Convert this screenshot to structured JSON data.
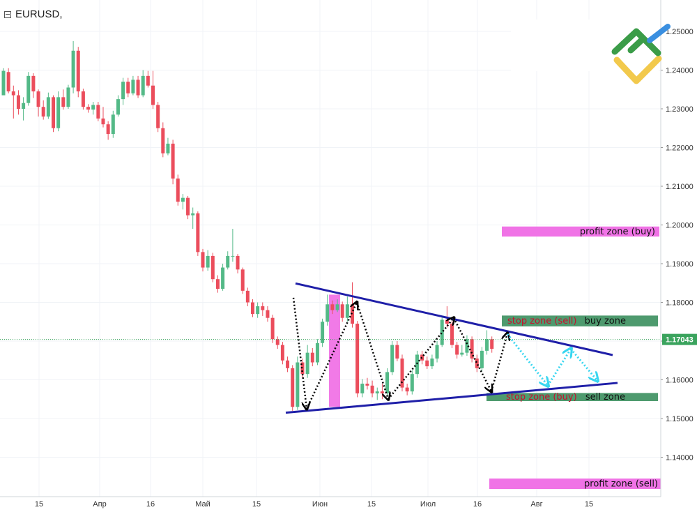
{
  "symbol": "EURUSD,",
  "colors": {
    "up": "#53b987",
    "down": "#eb4d5c",
    "triangle": "#1f1fa8",
    "pink": "#f073e6",
    "green_zone": "#4e9a6e",
    "current_price": "#3aa35d",
    "projection": "#38d6f0",
    "stop_text": "#c8102e"
  },
  "chart_data": {
    "type": "candlestick",
    "x_tick_labels": [
      "15",
      "Апр",
      "16",
      "Май",
      "15",
      "Июн",
      "15",
      "Июл",
      "16",
      "Авг",
      "15"
    ],
    "y_ticks": [
      "1.25000",
      "1.24000",
      "1.23000",
      "1.22000",
      "1.21000",
      "1.20000",
      "1.19000",
      "1.18000",
      "1.17000",
      "1.16000",
      "1.15000",
      "1.14000"
    ],
    "y_range": [
      1.131,
      1.2535
    ],
    "current_price": 1.17043,
    "current_price_label": "1.17043",
    "candles": [
      [
        1.2335,
        1.2398,
        1.2345,
        1.2405
      ],
      [
        1.2395,
        1.2345,
        1.234,
        1.2405
      ],
      [
        1.2345,
        1.2335,
        1.2275,
        1.236
      ],
      [
        1.2335,
        1.23,
        1.2285,
        1.2348
      ],
      [
        1.23,
        1.2315,
        1.227,
        1.233
      ],
      [
        1.2315,
        1.2385,
        1.2308,
        1.2395
      ],
      [
        1.2385,
        1.2345,
        1.2328,
        1.2392
      ],
      [
        1.2345,
        1.2305,
        1.228,
        1.235
      ],
      [
        1.2305,
        1.228,
        1.2272,
        1.2322
      ],
      [
        1.228,
        1.233,
        1.2274,
        1.2342
      ],
      [
        1.233,
        1.225,
        1.224,
        1.2335
      ],
      [
        1.225,
        1.233,
        1.2242,
        1.2345
      ],
      [
        1.233,
        1.2305,
        1.2298,
        1.235
      ],
      [
        1.2305,
        1.2355,
        1.23,
        1.2362
      ],
      [
        1.2355,
        1.245,
        1.234,
        1.2475
      ],
      [
        1.245,
        1.2345,
        1.233,
        1.246
      ],
      [
        1.2345,
        1.2305,
        1.2298,
        1.2352
      ],
      [
        1.2305,
        1.2298,
        1.229,
        1.2312
      ],
      [
        1.2298,
        1.231,
        1.2285,
        1.2318
      ],
      [
        1.231,
        1.2275,
        1.2268,
        1.2318
      ],
      [
        1.2275,
        1.226,
        1.2252,
        1.2305
      ],
      [
        1.226,
        1.2235,
        1.222,
        1.2268
      ],
      [
        1.2235,
        1.2285,
        1.2225,
        1.2295
      ],
      [
        1.2285,
        1.2325,
        1.228,
        1.2335
      ],
      [
        1.2325,
        1.237,
        1.231,
        1.238
      ],
      [
        1.237,
        1.234,
        1.233,
        1.238
      ],
      [
        1.234,
        1.2375,
        1.2335,
        1.2385
      ],
      [
        1.2375,
        1.2335,
        1.2328,
        1.2385
      ],
      [
        1.2335,
        1.2385,
        1.233,
        1.24
      ],
      [
        1.2385,
        1.236,
        1.2355,
        1.2398
      ],
      [
        1.236,
        1.231,
        1.23,
        1.2398
      ],
      [
        1.231,
        1.225,
        1.224,
        1.2318
      ],
      [
        1.225,
        1.2185,
        1.2175,
        1.2265
      ],
      [
        1.2185,
        1.221,
        1.218,
        1.2225
      ],
      [
        1.221,
        1.212,
        1.2105,
        1.222
      ],
      [
        1.212,
        1.206,
        1.205,
        1.213
      ],
      [
        1.206,
        1.207,
        1.204,
        1.208
      ],
      [
        1.207,
        1.2025,
        1.2015,
        1.2075
      ],
      [
        1.2025,
        1.203,
        1.199,
        1.2045
      ],
      [
        1.203,
        1.193,
        1.192,
        1.2035
      ],
      [
        1.193,
        1.189,
        1.188,
        1.1938
      ],
      [
        1.189,
        1.192,
        1.1882,
        1.1935
      ],
      [
        1.192,
        1.186,
        1.1852,
        1.1928
      ],
      [
        1.186,
        1.1835,
        1.1825,
        1.187
      ],
      [
        1.1835,
        1.189,
        1.183,
        1.19
      ],
      [
        1.189,
        1.192,
        1.1885,
        1.1932
      ],
      [
        1.192,
        1.192,
        1.1905,
        1.199
      ],
      [
        1.192,
        1.1885,
        1.1875,
        1.1925
      ],
      [
        1.1885,
        1.183,
        1.1822,
        1.189
      ],
      [
        1.183,
        1.18,
        1.179,
        1.1838
      ],
      [
        1.18,
        1.177,
        1.1762,
        1.1808
      ],
      [
        1.177,
        1.179,
        1.176,
        1.18
      ],
      [
        1.179,
        1.178,
        1.1765,
        1.18
      ],
      [
        1.178,
        1.176,
        1.175,
        1.179
      ],
      [
        1.176,
        1.1705,
        1.1695,
        1.1768
      ],
      [
        1.1705,
        1.169,
        1.168,
        1.1712
      ],
      [
        1.169,
        1.165,
        1.164,
        1.1698
      ],
      [
        1.165,
        1.163,
        1.162,
        1.166
      ],
      [
        1.163,
        1.153,
        1.152,
        1.1638
      ],
      [
        1.153,
        1.1645,
        1.1522,
        1.166
      ],
      [
        1.1645,
        1.1615,
        1.1605,
        1.1655
      ],
      [
        1.1615,
        1.167,
        1.1605,
        1.169
      ],
      [
        1.167,
        1.1645,
        1.1635,
        1.1682
      ],
      [
        1.1645,
        1.1695,
        1.1638,
        1.1705
      ],
      [
        1.1695,
        1.175,
        1.1685,
        1.1758
      ],
      [
        1.175,
        1.1795,
        1.174,
        1.182
      ],
      [
        1.1795,
        1.178,
        1.177,
        1.1805
      ],
      [
        1.178,
        1.1795,
        1.1775,
        1.1808
      ],
      [
        1.1795,
        1.176,
        1.175,
        1.1802
      ],
      [
        1.176,
        1.1795,
        1.175,
        1.1815
      ],
      [
        1.1795,
        1.1745,
        1.1735,
        1.1852
      ],
      [
        1.1745,
        1.1565,
        1.1555,
        1.1752
      ],
      [
        1.1565,
        1.159,
        1.1555,
        1.1602
      ],
      [
        1.159,
        1.1585,
        1.1575,
        1.1605
      ],
      [
        1.1585,
        1.1565,
        1.1555,
        1.1598
      ],
      [
        1.1565,
        1.157,
        1.1548,
        1.158
      ],
      [
        1.157,
        1.1565,
        1.155,
        1.159
      ],
      [
        1.1565,
        1.162,
        1.1558,
        1.163
      ],
      [
        1.162,
        1.169,
        1.1612,
        1.17
      ],
      [
        1.169,
        1.1655,
        1.1648,
        1.17
      ],
      [
        1.1655,
        1.158,
        1.157,
        1.1665
      ],
      [
        1.158,
        1.157,
        1.156,
        1.159
      ],
      [
        1.157,
        1.1615,
        1.1562,
        1.1625
      ],
      [
        1.1615,
        1.1665,
        1.1605,
        1.1675
      ],
      [
        1.1665,
        1.165,
        1.164,
        1.1675
      ],
      [
        1.165,
        1.1635,
        1.1628,
        1.166
      ],
      [
        1.1635,
        1.1655,
        1.1628,
        1.1665
      ],
      [
        1.1655,
        1.169,
        1.1645,
        1.17
      ],
      [
        1.169,
        1.1755,
        1.1685,
        1.1765
      ],
      [
        1.1755,
        1.1745,
        1.1735,
        1.179
      ],
      [
        1.1745,
        1.169,
        1.1682,
        1.1752
      ],
      [
        1.169,
        1.1665,
        1.1655,
        1.1698
      ],
      [
        1.1665,
        1.167,
        1.166,
        1.169
      ],
      [
        1.167,
        1.1705,
        1.1662,
        1.1715
      ],
      [
        1.1705,
        1.1655,
        1.1645,
        1.1712
      ],
      [
        1.1655,
        1.163,
        1.162,
        1.1665
      ],
      [
        1.163,
        1.1675,
        1.1622,
        1.1685
      ],
      [
        1.1675,
        1.1705,
        1.1665,
        1.1728
      ],
      [
        1.1705,
        1.168,
        1.167,
        1.1712
      ]
    ],
    "triangle_upper": [
      [
        1.1849
      ],
      [
        1.1664
      ]
    ],
    "triangle_lower": [
      [
        1.1515
      ],
      [
        1.1592
      ]
    ],
    "swing_path": [
      1.1812,
      1.1525,
      1.18,
      1.155,
      1.176,
      1.157,
      1.172
    ],
    "projection_path": [
      1.1718,
      1.1585,
      1.168,
      1.1598
    ],
    "zones": {
      "profit_buy": {
        "label": "profit zone (buy)",
        "low": 1.197,
        "high": 1.1996
      },
      "buy_zone": {
        "label": "buy zone",
        "stop_label": "stop zone (sell)",
        "low": 1.1738,
        "high": 1.1766
      },
      "sell_zone": {
        "label": "sell zone",
        "stop_label": "stop zone (buy)",
        "low": 1.1545,
        "high": 1.1566
      },
      "profit_sell": {
        "label": "profit zone (sell)",
        "low": 1.1318,
        "high": 1.1345
      },
      "pink_block": {
        "low": 1.153,
        "high": 1.182
      }
    }
  }
}
